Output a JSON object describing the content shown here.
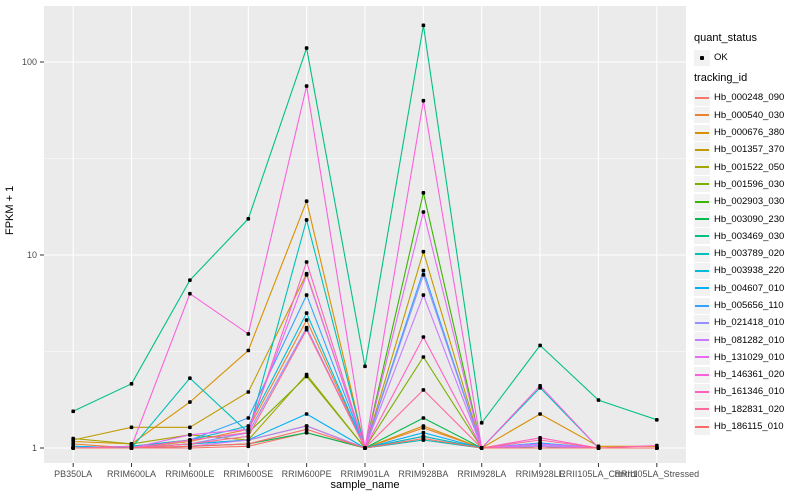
{
  "figure": {
    "panel_background": "#EBEBEB",
    "grid_color": "#FFFFFF",
    "point_color": "#000000",
    "tick_label_color": "#4D4D4D"
  },
  "axes": {
    "x_title": "sample_name",
    "y_title": "FPKM + 1",
    "y_tick_labels": [
      "1",
      "10",
      "100"
    ]
  },
  "legend": {
    "quant_title": "quant_status",
    "quant_items": [
      {
        "label": "OK",
        "marker": "black-point"
      }
    ],
    "tracking_title": "tracking_id"
  },
  "chart_data": {
    "type": "line",
    "title": "",
    "xlabel": "sample_name",
    "ylabel": "FPKM + 1",
    "y_scale": "log10",
    "ylim": [
      0.84,
      195
    ],
    "y_major_ticks": [
      1,
      10,
      100
    ],
    "y_minor_ticks": [
      3.162,
      31.62
    ],
    "grid": true,
    "legend_position": "right",
    "point_marker_color": "#000000",
    "categories": [
      "PB350LA",
      "RRIM600LA",
      "RRIM600LE",
      "RRIM600SE",
      "RRIM600PE",
      "RRIM901LA",
      "RRIM928BA",
      "RRIM928LA",
      "RRIM928LE",
      "RRII105LA_Control",
      "RRII105LA_Stressed"
    ],
    "series": [
      {
        "name": "Hb_000248_090",
        "color": "#F8766D",
        "values": [
          1.0,
          1.0,
          1.0,
          1.02,
          1.2,
          1.0,
          1.1,
          1.0,
          1.0,
          1.0,
          1.0
        ]
      },
      {
        "name": "Hb_000540_030",
        "color": "#EA8331",
        "values": [
          1.05,
          1.0,
          1.08,
          1.25,
          4.6,
          1.0,
          1.27,
          1.0,
          1.02,
          1.0,
          1.0
        ]
      },
      {
        "name": "Hb_000676_380",
        "color": "#D89000",
        "values": [
          1.08,
          1.05,
          1.73,
          3.2,
          19.0,
          1.0,
          1.3,
          1.0,
          1.5,
          1.02,
          1.02
        ]
      },
      {
        "name": "Hb_001357_370",
        "color": "#C09B00",
        "values": [
          1.1,
          1.28,
          1.28,
          1.95,
          8.0,
          1.0,
          10.4,
          1.0,
          1.02,
          1.0,
          1.0
        ]
      },
      {
        "name": "Hb_001522_050",
        "color": "#A3A500",
        "values": [
          1.12,
          1.05,
          1.17,
          1.1,
          2.4,
          1.0,
          1.15,
          1.0,
          1.0,
          1.0,
          1.0
        ]
      },
      {
        "name": "Hb_001596_030",
        "color": "#7CAE00",
        "values": [
          1.0,
          1.02,
          1.1,
          1.2,
          2.35,
          1.0,
          2.96,
          1.0,
          1.0,
          1.0,
          1.0
        ]
      },
      {
        "name": "Hb_002903_030",
        "color": "#39B600",
        "values": [
          1.0,
          1.0,
          1.05,
          1.1,
          1.3,
          1.0,
          21.0,
          1.0,
          1.02,
          1.0,
          1.0
        ]
      },
      {
        "name": "Hb_003090_230",
        "color": "#00BB4E",
        "values": [
          1.0,
          1.0,
          1.02,
          1.05,
          1.2,
          1.0,
          1.43,
          1.0,
          1.02,
          1.0,
          1.0
        ]
      },
      {
        "name": "Hb_003469_030",
        "color": "#00C087",
        "values": [
          1.55,
          2.15,
          7.4,
          15.4,
          118.0,
          2.65,
          155.0,
          1.35,
          3.4,
          1.77,
          1.4
        ]
      },
      {
        "name": "Hb_003789_020",
        "color": "#00C0B8",
        "values": [
          1.02,
          1.0,
          2.3,
          1.2,
          15.2,
          1.0,
          1.1,
          1.0,
          2.05,
          1.0,
          1.0
        ]
      },
      {
        "name": "Hb_003938_220",
        "color": "#00BCD8",
        "values": [
          1.0,
          1.02,
          1.1,
          1.3,
          5.0,
          1.0,
          1.15,
          1.0,
          1.06,
          1.0,
          1.0
        ]
      },
      {
        "name": "Hb_004607_010",
        "color": "#00B0F6",
        "values": [
          1.02,
          1.0,
          1.05,
          1.1,
          1.5,
          1.0,
          1.2,
          1.0,
          1.05,
          1.0,
          1.0
        ]
      },
      {
        "name": "Hb_005656_110",
        "color": "#35A2FF",
        "values": [
          1.0,
          1.0,
          1.1,
          1.43,
          6.2,
          1.0,
          8.3,
          1.0,
          1.06,
          1.0,
          1.0
        ]
      },
      {
        "name": "Hb_021418_010",
        "color": "#9590FF",
        "values": [
          1.0,
          1.0,
          1.05,
          1.2,
          4.2,
          1.0,
          7.9,
          1.0,
          1.03,
          1.0,
          1.0
        ]
      },
      {
        "name": "Hb_081282_010",
        "color": "#C77CFF",
        "values": [
          1.0,
          1.0,
          1.02,
          1.1,
          1.3,
          1.0,
          6.2,
          1.0,
          1.02,
          1.0,
          1.0
        ]
      },
      {
        "name": "Hb_131029_010",
        "color": "#E76BF3",
        "values": [
          1.0,
          1.0,
          1.17,
          1.25,
          7.9,
          1.0,
          16.7,
          1.0,
          1.05,
          1.0,
          1.0
        ]
      },
      {
        "name": "Hb_146361_020",
        "color": "#FA62DB",
        "values": [
          1.0,
          1.02,
          6.3,
          3.9,
          75.0,
          1.0,
          63.0,
          1.0,
          2.1,
          1.0,
          1.0
        ]
      },
      {
        "name": "Hb_161346_010",
        "color": "#FF61C3",
        "values": [
          1.0,
          1.0,
          1.1,
          1.2,
          9.2,
          1.0,
          3.76,
          1.0,
          1.13,
          1.0,
          1.03
        ]
      },
      {
        "name": "Hb_182831_020",
        "color": "#FF6A98",
        "values": [
          1.0,
          1.0,
          1.05,
          1.15,
          4.1,
          1.0,
          2.0,
          1.0,
          1.1,
          1.0,
          1.0
        ]
      },
      {
        "name": "Hb_186115_010",
        "color": "#FF6C67",
        "values": [
          1.0,
          1.0,
          1.02,
          1.05,
          1.25,
          1.0,
          1.12,
          1.0,
          1.0,
          1.0,
          1.0
        ]
      }
    ]
  }
}
